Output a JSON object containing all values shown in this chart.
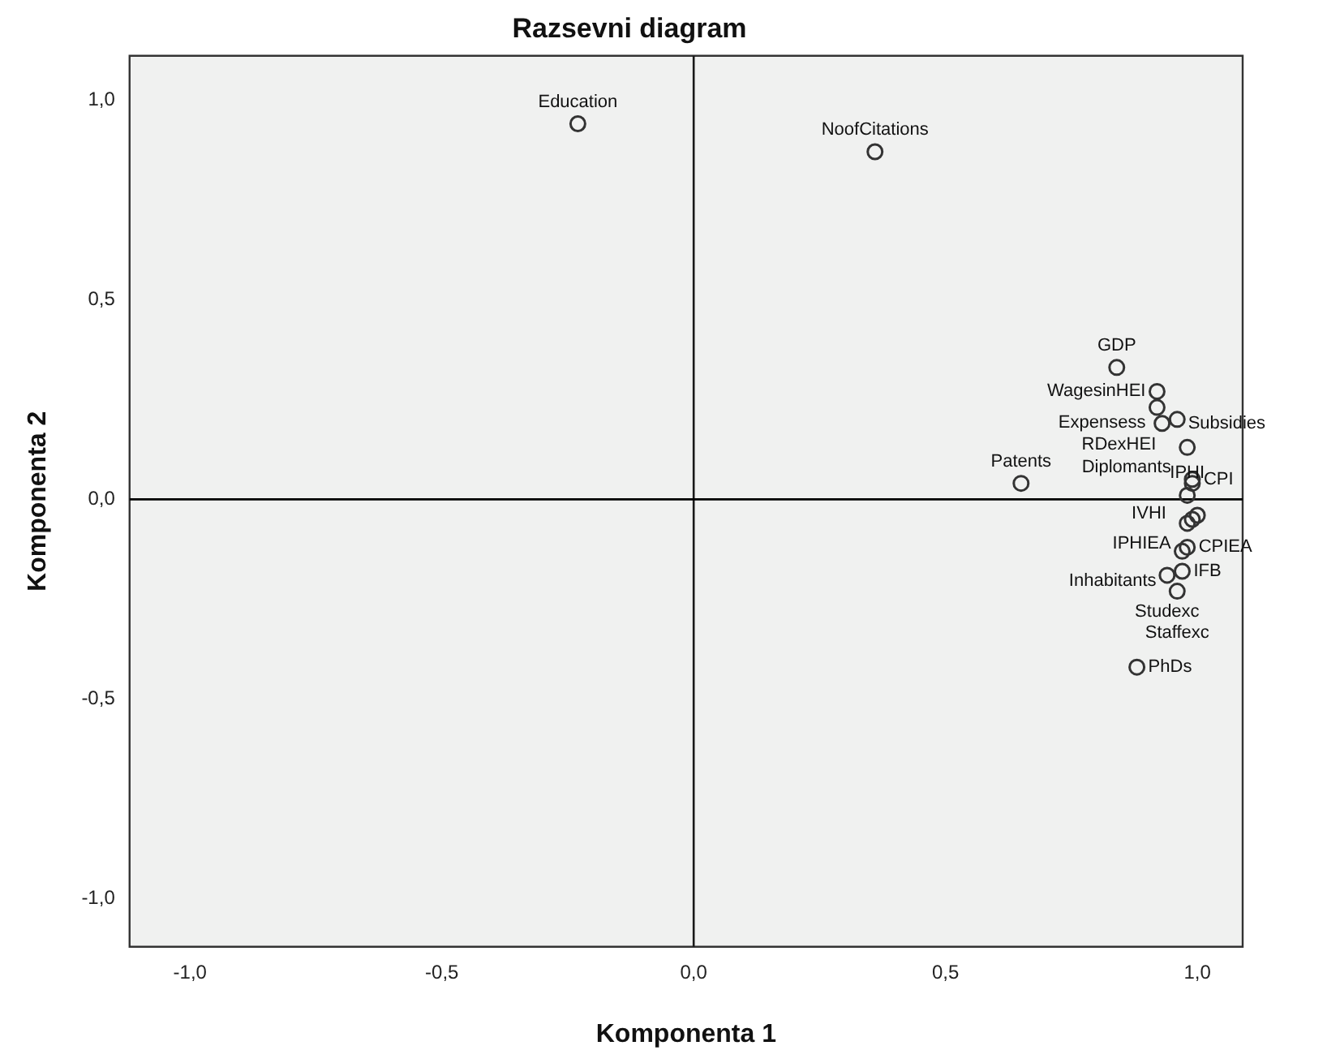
{
  "chart_data": {
    "type": "scatter",
    "title": "Razsevni diagram",
    "xlabel": "Komponenta 1",
    "ylabel": "Komponenta 2",
    "xlim": [
      -1.12,
      1.09
    ],
    "ylim": [
      -1.12,
      1.11
    ],
    "xticks": [
      {
        "value": -1,
        "label": "-1,0"
      },
      {
        "value": -0.5,
        "label": "-0,5"
      },
      {
        "value": 0,
        "label": "0,0"
      },
      {
        "value": 0.5,
        "label": "0,5"
      },
      {
        "value": 1,
        "label": "1,0"
      }
    ],
    "yticks": [
      {
        "value": -1,
        "label": "-1,0"
      },
      {
        "value": -0.5,
        "label": "-0,5"
      },
      {
        "value": 0,
        "label": "0,0"
      },
      {
        "value": 0.5,
        "label": "0,5"
      },
      {
        "value": 1,
        "label": "1,0"
      }
    ],
    "grid": false,
    "legend": false,
    "marker": "circle",
    "series": [
      {
        "color": "#333333",
        "x": [
          -0.23,
          0.36,
          0.84,
          0.92,
          0.92,
          0.93,
          0.96,
          0.98,
          0.99,
          0.99,
          0.98,
          0.65,
          1.0,
          0.99,
          0.98,
          0.98,
          0.97,
          0.97,
          0.94,
          0.96,
          0.88
        ],
        "values": [
          0.94,
          0.87,
          0.33,
          0.27,
          0.23,
          0.19,
          0.2,
          0.13,
          0.05,
          0.04,
          0.01,
          0.04,
          -0.04,
          -0.05,
          -0.06,
          -0.12,
          -0.13,
          -0.18,
          -0.19,
          -0.23,
          -0.42
        ]
      }
    ],
    "ref_lines": [
      {
        "axis": "x",
        "value": 0,
        "color": "#1a1a1a"
      },
      {
        "axis": "y",
        "value": 0,
        "color": "#000000"
      }
    ],
    "annotations": [
      {
        "text": "Education",
        "x": -0.23,
        "y": 0.94
      },
      {
        "text": "NoofCitations",
        "x": 0.36,
        "y": 0.87
      },
      {
        "text": "GDP",
        "x": 0.84,
        "y": 0.33
      },
      {
        "text": "WagesinHEI",
        "x": 0.92,
        "y": 0.27
      },
      {
        "text": "Expensess",
        "x": 0.92,
        "y": 0.23
      },
      {
        "text": "RDexHEI",
        "x": 0.96,
        "y": 0.2
      },
      {
        "text": "Subsidies",
        "x": 0.93,
        "y": 0.19
      },
      {
        "text": "Diplomants",
        "x": 0.98,
        "y": 0.13
      },
      {
        "text": "CPI",
        "x": 0.99,
        "y": 0.05
      },
      {
        "text": "IVHI",
        "x": 0.99,
        "y": 0.04
      },
      {
        "text": "IPHI",
        "x": 0.98,
        "y": 0.01
      },
      {
        "text": "Patents",
        "x": 0.65,
        "y": 0.04
      },
      {
        "text": "IPHIEA",
        "x": 0.98,
        "y": -0.06
      },
      {
        "text": "CPIEA",
        "x": 0.98,
        "y": -0.12
      },
      {
        "text": "Inhabitants",
        "x": 0.97,
        "y": -0.13
      },
      {
        "text": "IFB",
        "x": 0.97,
        "y": -0.18
      },
      {
        "text": "Studexc",
        "x": 0.94,
        "y": -0.19
      },
      {
        "text": "Staffexc",
        "x": 0.96,
        "y": -0.23
      },
      {
        "text": "PhDs",
        "x": 0.88,
        "y": -0.42
      }
    ]
  }
}
